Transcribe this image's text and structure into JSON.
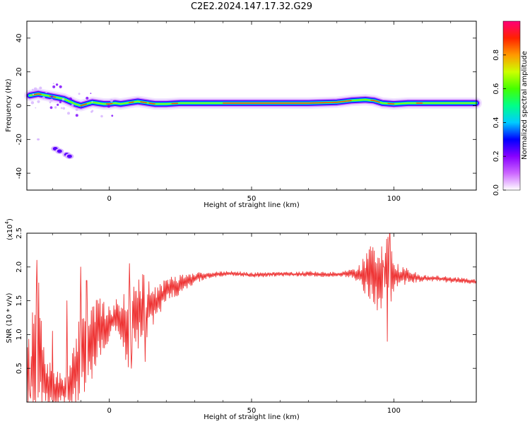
{
  "title": "C2E2.2024.147.17.32.G29",
  "chart_data": [
    {
      "type": "heatmap",
      "xlabel": "Height of straight line (km)",
      "ylabel": "Frequency (Hz)",
      "xlim": [
        -29,
        129
      ],
      "ylim": [
        -50,
        50
      ],
      "xticks": [
        0,
        50,
        100
      ],
      "yticks": [
        -40,
        -20,
        0,
        20,
        40
      ],
      "colorbar": {
        "label": "Normalized spectral amplitude",
        "range": [
          0,
          1
        ],
        "ticks": [
          "0.0",
          "0.2",
          "0.4",
          "0.6",
          "0.8"
        ],
        "colors": [
          "#ffffff",
          "#cc66ff",
          "#8800ff",
          "#0000ff",
          "#00ccff",
          "#00ff88",
          "#44ff00",
          "#ccff00",
          "#ff9900",
          "#ff2200",
          "#ff0077"
        ]
      },
      "ridge": [
        [
          -28,
          6
        ],
        [
          -25,
          7
        ],
        [
          -22,
          6
        ],
        [
          -19,
          5
        ],
        [
          -16,
          4
        ],
        [
          -14,
          2.5
        ],
        [
          -12,
          1
        ],
        [
          -10,
          0
        ],
        [
          -8,
          1
        ],
        [
          -6,
          2
        ],
        [
          -4,
          1.5
        ],
        [
          -2,
          1
        ],
        [
          0,
          1
        ],
        [
          2,
          1.5
        ],
        [
          4,
          1
        ],
        [
          6,
          1.5
        ],
        [
          8,
          2
        ],
        [
          10,
          2.5
        ],
        [
          12,
          2
        ],
        [
          14,
          1.5
        ],
        [
          16,
          1
        ],
        [
          20,
          1
        ],
        [
          25,
          1.5
        ],
        [
          30,
          1.5
        ],
        [
          40,
          1.5
        ],
        [
          50,
          1.5
        ],
        [
          60,
          1.5
        ],
        [
          70,
          1.5
        ],
        [
          80,
          2
        ],
        [
          85,
          3
        ],
        [
          90,
          3.5
        ],
        [
          93,
          3
        ],
        [
          96,
          1.5
        ],
        [
          100,
          1
        ],
        [
          105,
          1.5
        ],
        [
          110,
          1.5
        ],
        [
          115,
          1.5
        ],
        [
          120,
          1.5
        ],
        [
          129,
          1.5
        ]
      ],
      "blobs": [
        [
          -19,
          -25.5
        ],
        [
          -17.5,
          -27
        ],
        [
          -15,
          -29
        ],
        [
          -14,
          -30
        ],
        [
          -25,
          -20
        ]
      ]
    },
    {
      "type": "line",
      "xlabel": "Height of straight line (km)",
      "ylabel": "SNR (10 * v/v)",
      "yscale_note": "(x10",
      "yscale_exp": "4",
      "xlim": [
        -29,
        129
      ],
      "ylim": [
        0,
        25000
      ],
      "xticks": [
        0,
        50,
        100
      ],
      "yticks": [
        5000,
        10000,
        15000,
        20000,
        25000
      ],
      "ytick_labels": [
        "0.5",
        "1.0",
        "1.5",
        "2.0",
        "2.5"
      ],
      "color": "#ee3333",
      "envelope": [
        [
          -29,
          3000
        ],
        [
          -27,
          5000
        ],
        [
          -25,
          8000
        ],
        [
          -23,
          3000
        ],
        [
          -21,
          2500
        ],
        [
          -19,
          1500
        ],
        [
          -17,
          2000
        ],
        [
          -15,
          1500
        ],
        [
          -13,
          3000
        ],
        [
          -11,
          6000
        ],
        [
          -9,
          9000
        ],
        [
          -7,
          8000
        ],
        [
          -5,
          10000
        ],
        [
          -3,
          11000
        ],
        [
          -1,
          11500
        ],
        [
          1,
          12000
        ],
        [
          3,
          12500
        ],
        [
          5,
          12000
        ],
        [
          7,
          11000
        ],
        [
          9,
          13000
        ],
        [
          11,
          13500
        ],
        [
          13,
          14000
        ],
        [
          15,
          14000
        ],
        [
          17,
          15000
        ],
        [
          19,
          16000
        ],
        [
          21,
          17000
        ],
        [
          23,
          17000
        ],
        [
          25,
          17500
        ],
        [
          28,
          18000
        ],
        [
          31,
          18500
        ],
        [
          35,
          18800
        ],
        [
          40,
          19000
        ],
        [
          45,
          19000
        ],
        [
          50,
          18800
        ],
        [
          55,
          18900
        ],
        [
          60,
          19000
        ],
        [
          65,
          18900
        ],
        [
          70,
          19000
        ],
        [
          75,
          18900
        ],
        [
          80,
          18900
        ],
        [
          85,
          19000
        ],
        [
          88,
          19000
        ],
        [
          90,
          18800
        ],
        [
          95,
          19000
        ],
        [
          98,
          19000
        ],
        [
          100,
          18700
        ],
        [
          103,
          18700
        ],
        [
          106,
          18600
        ],
        [
          110,
          18300
        ],
        [
          115,
          18300
        ],
        [
          120,
          18100
        ],
        [
          125,
          18000
        ],
        [
          129,
          17800
        ]
      ],
      "noise": [
        [
          -29,
          4000
        ],
        [
          -27,
          7000
        ],
        [
          -25,
          10000
        ],
        [
          -23,
          4000
        ],
        [
          -21,
          3000
        ],
        [
          -19,
          2500
        ],
        [
          -17,
          2000
        ],
        [
          -15,
          2000
        ],
        [
          -13,
          3500
        ],
        [
          -11,
          5000
        ],
        [
          -9,
          7000
        ],
        [
          -7,
          5000
        ],
        [
          -5,
          5000
        ],
        [
          -3,
          3500
        ],
        [
          -1,
          2500
        ],
        [
          1,
          2000
        ],
        [
          3,
          2500
        ],
        [
          5,
          4000
        ],
        [
          7,
          6000
        ],
        [
          9,
          4000
        ],
        [
          11,
          5000
        ],
        [
          13,
          4000
        ],
        [
          15,
          2500
        ],
        [
          17,
          2000
        ],
        [
          20,
          1500
        ],
        [
          25,
          1200
        ],
        [
          30,
          700
        ],
        [
          35,
          400
        ],
        [
          40,
          300
        ],
        [
          80,
          300
        ],
        [
          85,
          500
        ],
        [
          88,
          1200
        ],
        [
          90,
          2500
        ],
        [
          92,
          4500
        ],
        [
          95,
          4500
        ],
        [
          98,
          5000
        ],
        [
          100,
          2000
        ],
        [
          103,
          1200
        ],
        [
          106,
          800
        ],
        [
          110,
          400
        ],
        [
          129,
          300
        ]
      ],
      "spikes": [
        [
          -25.5,
          21000
        ],
        [
          -10,
          20000
        ],
        [
          -8,
          18000
        ],
        [
          -15,
          15000
        ],
        [
          -20,
          10500
        ],
        [
          -11,
          300
        ],
        [
          -28,
          1000
        ],
        [
          7,
          20500
        ],
        [
          7.8,
          5000
        ],
        [
          12.5,
          6000
        ],
        [
          13,
          14000
        ],
        [
          98.5,
          26000
        ],
        [
          97.8,
          9000
        ],
        [
          96.5,
          20000
        ],
        [
          94,
          20500
        ]
      ]
    }
  ]
}
